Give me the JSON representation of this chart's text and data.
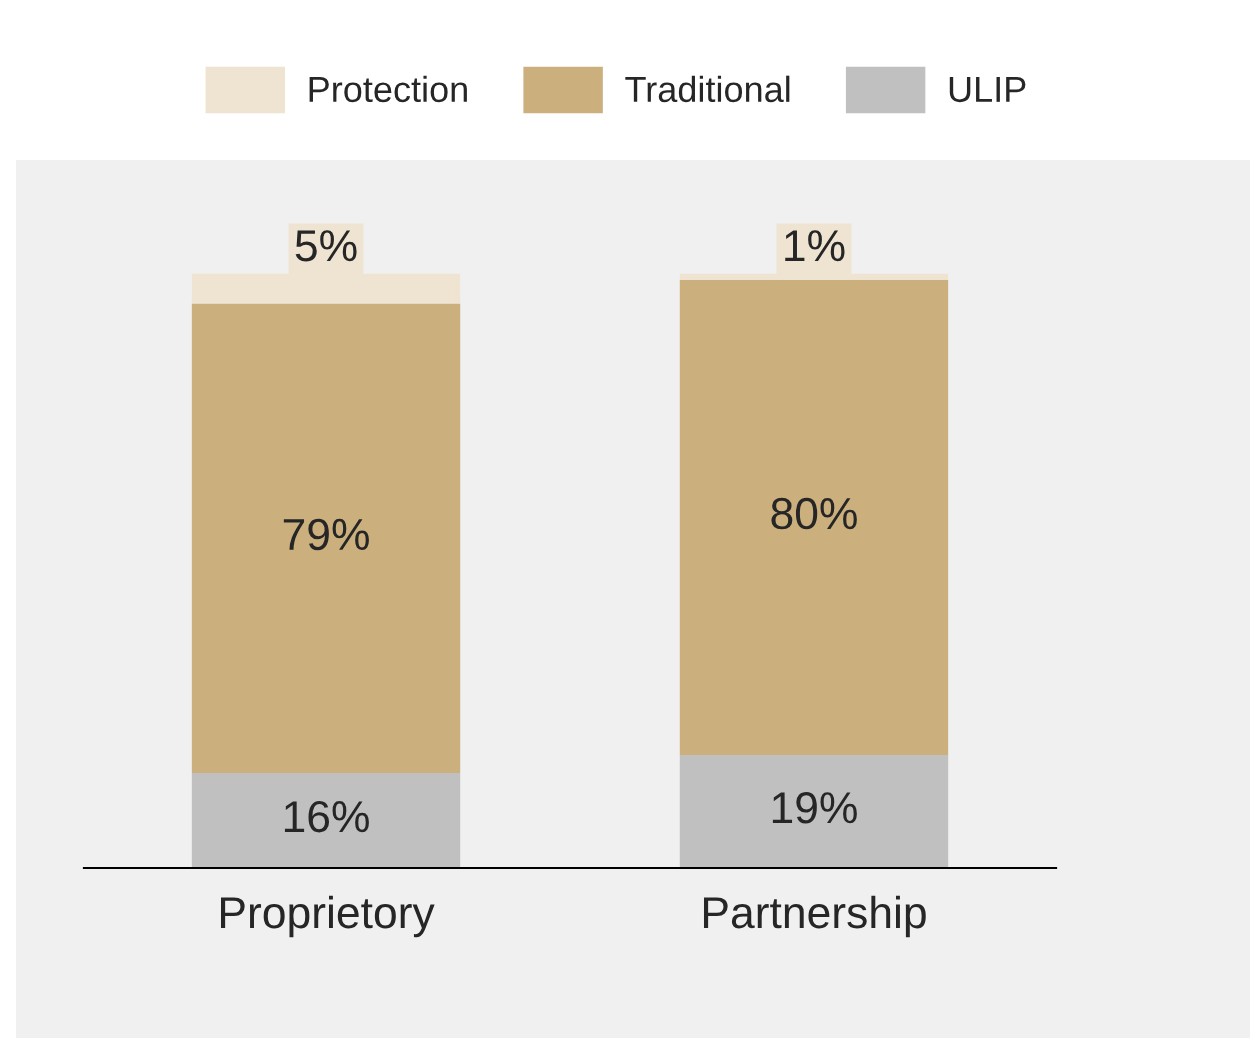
{
  "chart_data": {
    "type": "bar",
    "stacked": true,
    "categories": [
      "Proprietory",
      "Partnership"
    ],
    "series": [
      {
        "name": "ULIP",
        "color": "#c0c0c0",
        "values": [
          16,
          19
        ],
        "value_labels": [
          "16%",
          "19%"
        ]
      },
      {
        "name": "Traditional",
        "color": "#cbb07d",
        "values": [
          79,
          80
        ],
        "value_labels": [
          "79%",
          "80%"
        ]
      },
      {
        "name": "Protection",
        "color": "#efe4d2",
        "values": [
          5,
          1
        ],
        "value_labels": [
          "5%",
          "1%"
        ]
      }
    ],
    "legend": "top",
    "tick_labels": "x"
  }
}
